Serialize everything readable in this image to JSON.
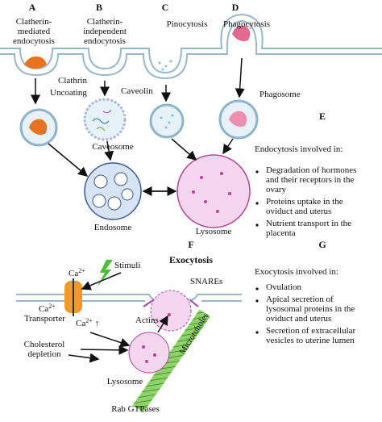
{
  "panel_a": {
    "label": "A",
    "title": [
      "Clatherin-",
      "mediated",
      "endocytosis"
    ],
    "clathrin": "Clathrin",
    "uncoating": "Uncoating"
  },
  "panel_b": {
    "label": "B",
    "title": [
      "Clatherin-",
      "independent",
      "endocytosis"
    ],
    "caveolin": "Caveolin",
    "caveosome": "Caveosome"
  },
  "panel_c": {
    "label": "C",
    "title": "Pinocytosis"
  },
  "panel_d": {
    "label": "D",
    "title": "Phagocytosis",
    "phagosome": "Phagosome"
  },
  "endosome": "Endosome",
  "lysosome": "Lysosome",
  "panel_e": {
    "label": "E",
    "heading": "Endocytosis involved in:",
    "bullets": [
      [
        "Degradation of hormones",
        "and their receptors in the",
        "ovary"
      ],
      [
        "Proteins uptake in the",
        "oviduct and uterus"
      ],
      [
        "Nutrient transport in the",
        "placenta"
      ]
    ]
  },
  "panel_f": {
    "label": "F",
    "title": "Exocytosis",
    "stimuli": "Stimuli",
    "ca_in": {
      "base": "Ca",
      "sup": "2+"
    },
    "transporter": {
      "base": "Ca",
      "sup": "2+",
      "line2": "Transporter"
    },
    "ca_up": {
      "base": "Ca",
      "sup": "2+",
      "arrow": "↑"
    },
    "snares": "SNAREs",
    "actins": "Actins",
    "microtubules": "Microtubules",
    "cholesterol": [
      "Cholesterol",
      "depletion"
    ],
    "lysosome": "Lysosome",
    "rab": "Rab GTPases"
  },
  "panel_g": {
    "label": "G",
    "heading": "Exocytosis involved in:",
    "bullets": [
      [
        "Ovulation"
      ],
      [
        "Apical secretion of",
        "lysosomal proteins in the",
        "oviduct and uterus"
      ],
      [
        "Secretion of extracellular",
        "vesicles to uterine lumen"
      ]
    ]
  }
}
